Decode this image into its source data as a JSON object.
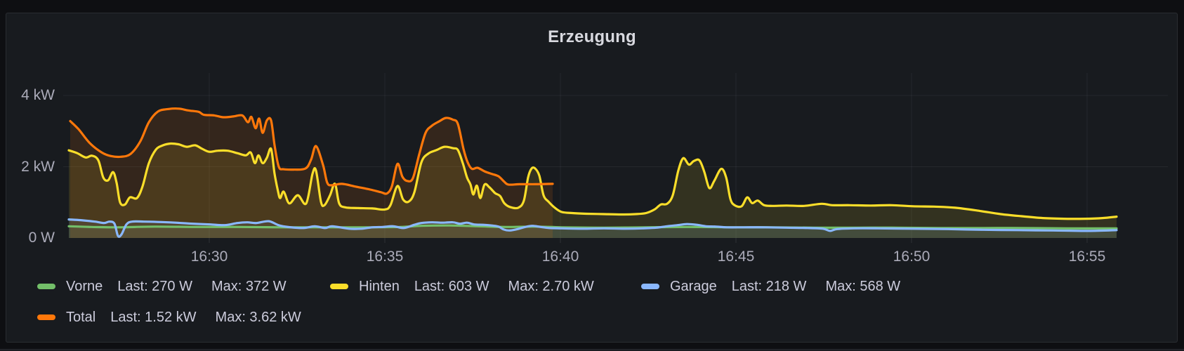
{
  "chart_data": {
    "type": "line",
    "title": "Erzeugung",
    "t_unit": "minutes after 16:26",
    "x_ticks": [
      {
        "label": "16:30",
        "t": 4
      },
      {
        "label": "16:35",
        "t": 9
      },
      {
        "label": "16:40",
        "t": 14
      },
      {
        "label": "16:45",
        "t": 19
      },
      {
        "label": "16:50",
        "t": 24
      },
      {
        "label": "16:55",
        "t": 29
      }
    ],
    "y_ticks": [
      {
        "label": "0 W",
        "v": 0
      },
      {
        "label": "2 kW",
        "v": 2
      },
      {
        "label": "4 kW",
        "v": 4
      }
    ],
    "ylim": [
      0,
      4.6
    ],
    "grid": true,
    "legend_position": "bottom",
    "series": [
      {
        "name": "Vorne",
        "color": "#73BF69",
        "fill_opacity": 0.1,
        "last": "270 W",
        "max": "372 W",
        "points": [
          [
            0,
            0.33
          ],
          [
            0.64,
            0.31
          ],
          [
            1.44,
            0.3
          ],
          [
            2.44,
            0.32
          ],
          [
            3.64,
            0.31
          ],
          [
            4.84,
            0.31
          ],
          [
            6.04,
            0.3
          ],
          [
            7.24,
            0.3
          ],
          [
            8.44,
            0.3
          ],
          [
            9.44,
            0.31
          ],
          [
            10.04,
            0.34
          ],
          [
            10.84,
            0.35
          ],
          [
            11.64,
            0.33
          ],
          [
            12.44,
            0.31
          ],
          [
            13.24,
            0.32
          ],
          [
            14.04,
            0.3
          ],
          [
            15.24,
            0.29
          ],
          [
            16.44,
            0.3
          ],
          [
            17.64,
            0.31
          ],
          [
            18.84,
            0.3
          ],
          [
            20.04,
            0.3
          ],
          [
            21.24,
            0.29
          ],
          [
            22.44,
            0.29
          ],
          [
            23.64,
            0.29
          ],
          [
            24.84,
            0.28
          ],
          [
            26.04,
            0.28
          ],
          [
            27.24,
            0.28
          ],
          [
            28.44,
            0.27
          ],
          [
            29.84,
            0.27
          ]
        ]
      },
      {
        "name": "Hinten",
        "color": "#FADE2A",
        "fill_opacity": 0.12,
        "last": "603 W",
        "max": "2.70 kW",
        "points": [
          [
            0,
            2.46
          ],
          [
            0.24,
            2.38
          ],
          [
            0.48,
            2.26
          ],
          [
            0.66,
            2.31
          ],
          [
            0.84,
            2.18
          ],
          [
            0.98,
            1.7
          ],
          [
            1.12,
            1.62
          ],
          [
            1.26,
            1.85
          ],
          [
            1.36,
            1.55
          ],
          [
            1.46,
            1.0
          ],
          [
            1.6,
            0.94
          ],
          [
            1.74,
            1.14
          ],
          [
            1.94,
            1.12
          ],
          [
            2.1,
            1.45
          ],
          [
            2.28,
            2.1
          ],
          [
            2.48,
            2.48
          ],
          [
            2.68,
            2.6
          ],
          [
            2.9,
            2.65
          ],
          [
            3.12,
            2.63
          ],
          [
            3.36,
            2.56
          ],
          [
            3.6,
            2.6
          ],
          [
            3.8,
            2.5
          ],
          [
            4.0,
            2.42
          ],
          [
            4.24,
            2.45
          ],
          [
            4.52,
            2.45
          ],
          [
            4.8,
            2.38
          ],
          [
            5.04,
            2.32
          ],
          [
            5.18,
            2.4
          ],
          [
            5.3,
            2.1
          ],
          [
            5.4,
            2.32
          ],
          [
            5.52,
            2.1
          ],
          [
            5.64,
            2.25
          ],
          [
            5.76,
            2.5
          ],
          [
            5.86,
            1.8
          ],
          [
            5.96,
            1.3
          ],
          [
            6.02,
            1.12
          ],
          [
            6.12,
            1.3
          ],
          [
            6.28,
            0.97
          ],
          [
            6.52,
            1.2
          ],
          [
            6.76,
            0.97
          ],
          [
            6.94,
            1.8
          ],
          [
            7.04,
            1.89
          ],
          [
            7.18,
            1.02
          ],
          [
            7.28,
            0.92
          ],
          [
            7.44,
            1.2
          ],
          [
            7.58,
            1.52
          ],
          [
            7.7,
            0.97
          ],
          [
            7.88,
            0.86
          ],
          [
            8.24,
            0.84
          ],
          [
            8.64,
            0.83
          ],
          [
            9.0,
            0.8
          ],
          [
            9.16,
            0.92
          ],
          [
            9.36,
            1.46
          ],
          [
            9.52,
            1.08
          ],
          [
            9.68,
            1.02
          ],
          [
            9.84,
            1.28
          ],
          [
            10.04,
            2.12
          ],
          [
            10.24,
            2.37
          ],
          [
            10.48,
            2.47
          ],
          [
            10.7,
            2.56
          ],
          [
            10.94,
            2.52
          ],
          [
            11.08,
            2.47
          ],
          [
            11.22,
            2.1
          ],
          [
            11.34,
            1.7
          ],
          [
            11.44,
            1.5
          ],
          [
            11.52,
            1.22
          ],
          [
            11.62,
            1.47
          ],
          [
            11.72,
            1.12
          ],
          [
            11.84,
            1.5
          ],
          [
            11.98,
            1.42
          ],
          [
            12.14,
            1.26
          ],
          [
            12.28,
            1.18
          ],
          [
            12.4,
            0.98
          ],
          [
            12.56,
            0.87
          ],
          [
            12.8,
            0.85
          ],
          [
            12.96,
            1.05
          ],
          [
            13.08,
            1.7
          ],
          [
            13.18,
            1.95
          ],
          [
            13.28,
            1.95
          ],
          [
            13.4,
            1.75
          ],
          [
            13.52,
            1.2
          ],
          [
            13.66,
            1.02
          ],
          [
            13.84,
            0.85
          ],
          [
            14.04,
            0.73
          ],
          [
            14.34,
            0.7
          ],
          [
            14.74,
            0.68
          ],
          [
            15.24,
            0.67
          ],
          [
            15.74,
            0.66
          ],
          [
            16.14,
            0.67
          ],
          [
            16.44,
            0.7
          ],
          [
            16.68,
            0.8
          ],
          [
            16.86,
            0.94
          ],
          [
            17.04,
            0.96
          ],
          [
            17.2,
            1.2
          ],
          [
            17.36,
            1.9
          ],
          [
            17.5,
            2.24
          ],
          [
            17.66,
            2.06
          ],
          [
            17.8,
            2.16
          ],
          [
            17.96,
            2.18
          ],
          [
            18.1,
            1.85
          ],
          [
            18.24,
            1.4
          ],
          [
            18.38,
            1.6
          ],
          [
            18.58,
            1.94
          ],
          [
            18.72,
            1.7
          ],
          [
            18.84,
            1.1
          ],
          [
            18.96,
            0.92
          ],
          [
            19.16,
            0.89
          ],
          [
            19.32,
            1.14
          ],
          [
            19.46,
            0.98
          ],
          [
            19.62,
            1.05
          ],
          [
            19.8,
            0.92
          ],
          [
            20.04,
            0.9
          ],
          [
            20.44,
            0.91
          ],
          [
            20.94,
            0.9
          ],
          [
            21.44,
            0.96
          ],
          [
            21.74,
            0.92
          ],
          [
            22.24,
            0.92
          ],
          [
            22.84,
            0.91
          ],
          [
            23.44,
            0.92
          ],
          [
            24.04,
            0.89
          ],
          [
            24.64,
            0.88
          ],
          [
            25.24,
            0.85
          ],
          [
            25.94,
            0.76
          ],
          [
            26.54,
            0.67
          ],
          [
            27.14,
            0.61
          ],
          [
            27.74,
            0.56
          ],
          [
            28.34,
            0.54
          ],
          [
            28.94,
            0.54
          ],
          [
            29.44,
            0.56
          ],
          [
            29.84,
            0.6
          ]
        ]
      },
      {
        "name": "Garage",
        "color": "#8AB8FF",
        "fill_opacity": 0.1,
        "last": "218 W",
        "max": "568 W",
        "points": [
          [
            0,
            0.52
          ],
          [
            0.34,
            0.5
          ],
          [
            0.74,
            0.46
          ],
          [
            1.0,
            0.42
          ],
          [
            1.16,
            0.46
          ],
          [
            1.3,
            0.4
          ],
          [
            1.4,
            0.06
          ],
          [
            1.5,
            0.1
          ],
          [
            1.64,
            0.38
          ],
          [
            1.8,
            0.46
          ],
          [
            2.14,
            0.46
          ],
          [
            2.54,
            0.45
          ],
          [
            3.04,
            0.43
          ],
          [
            3.54,
            0.4
          ],
          [
            4.04,
            0.38
          ],
          [
            4.44,
            0.36
          ],
          [
            4.8,
            0.42
          ],
          [
            5.08,
            0.44
          ],
          [
            5.34,
            0.42
          ],
          [
            5.7,
            0.47
          ],
          [
            6.04,
            0.34
          ],
          [
            6.64,
            0.28
          ],
          [
            7.0,
            0.33
          ],
          [
            7.3,
            0.28
          ],
          [
            7.5,
            0.33
          ],
          [
            7.98,
            0.26
          ],
          [
            8.34,
            0.26
          ],
          [
            8.64,
            0.3
          ],
          [
            8.94,
            0.31
          ],
          [
            9.24,
            0.33
          ],
          [
            9.54,
            0.28
          ],
          [
            9.84,
            0.37
          ],
          [
            10.04,
            0.42
          ],
          [
            10.34,
            0.44
          ],
          [
            10.64,
            0.43
          ],
          [
            10.94,
            0.44
          ],
          [
            11.14,
            0.4
          ],
          [
            11.34,
            0.43
          ],
          [
            11.54,
            0.38
          ],
          [
            11.8,
            0.37
          ],
          [
            12.04,
            0.35
          ],
          [
            12.24,
            0.32
          ],
          [
            12.38,
            0.24
          ],
          [
            12.54,
            0.21
          ],
          [
            12.74,
            0.24
          ],
          [
            13.0,
            0.31
          ],
          [
            13.2,
            0.34
          ],
          [
            13.44,
            0.31
          ],
          [
            13.68,
            0.28
          ],
          [
            14.04,
            0.27
          ],
          [
            14.64,
            0.26
          ],
          [
            15.24,
            0.27
          ],
          [
            15.84,
            0.26
          ],
          [
            16.34,
            0.27
          ],
          [
            16.74,
            0.29
          ],
          [
            17.04,
            0.33
          ],
          [
            17.34,
            0.36
          ],
          [
            17.6,
            0.39
          ],
          [
            17.88,
            0.37
          ],
          [
            18.14,
            0.33
          ],
          [
            18.44,
            0.32
          ],
          [
            18.74,
            0.3
          ],
          [
            19.24,
            0.3
          ],
          [
            19.84,
            0.3
          ],
          [
            20.44,
            0.29
          ],
          [
            21.04,
            0.28
          ],
          [
            21.48,
            0.26
          ],
          [
            21.68,
            0.2
          ],
          [
            21.88,
            0.25
          ],
          [
            22.34,
            0.27
          ],
          [
            23.04,
            0.27
          ],
          [
            24.04,
            0.26
          ],
          [
            25.04,
            0.25
          ],
          [
            26.04,
            0.23
          ],
          [
            27.04,
            0.22
          ],
          [
            28.04,
            0.21
          ],
          [
            29.04,
            0.2
          ],
          [
            29.84,
            0.22
          ]
        ]
      },
      {
        "name": "Total",
        "color": "#FF780A",
        "fill_opacity": 0.12,
        "last": "1.52 kW",
        "max": "3.62 kW",
        "points": [
          [
            0.04,
            3.28
          ],
          [
            0.28,
            3.05
          ],
          [
            0.6,
            2.66
          ],
          [
            0.94,
            2.4
          ],
          [
            1.2,
            2.3
          ],
          [
            1.48,
            2.28
          ],
          [
            1.76,
            2.36
          ],
          [
            2.04,
            2.72
          ],
          [
            2.28,
            3.25
          ],
          [
            2.54,
            3.55
          ],
          [
            2.84,
            3.62
          ],
          [
            3.14,
            3.63
          ],
          [
            3.4,
            3.58
          ],
          [
            3.7,
            3.54
          ],
          [
            3.84,
            3.46
          ],
          [
            4.14,
            3.44
          ],
          [
            4.4,
            3.39
          ],
          [
            4.68,
            3.41
          ],
          [
            4.94,
            3.44
          ],
          [
            5.1,
            3.25
          ],
          [
            5.2,
            3.4
          ],
          [
            5.32,
            3.08
          ],
          [
            5.42,
            3.35
          ],
          [
            5.52,
            2.95
          ],
          [
            5.64,
            3.3
          ],
          [
            5.76,
            3.3
          ],
          [
            5.86,
            2.6
          ],
          [
            5.98,
            2.0
          ],
          [
            6.12,
            1.93
          ],
          [
            6.4,
            1.92
          ],
          [
            6.74,
            1.95
          ],
          [
            6.9,
            2.2
          ],
          [
            7.04,
            2.58
          ],
          [
            7.24,
            2.05
          ],
          [
            7.36,
            1.55
          ],
          [
            7.5,
            1.48
          ],
          [
            7.78,
            1.52
          ],
          [
            8.18,
            1.44
          ],
          [
            8.58,
            1.36
          ],
          [
            8.9,
            1.28
          ],
          [
            9.06,
            1.25
          ],
          [
            9.2,
            1.45
          ],
          [
            9.36,
            2.08
          ],
          [
            9.5,
            1.72
          ],
          [
            9.64,
            1.6
          ],
          [
            9.8,
            1.68
          ],
          [
            9.98,
            2.35
          ],
          [
            10.16,
            2.95
          ],
          [
            10.34,
            3.15
          ],
          [
            10.56,
            3.28
          ],
          [
            10.74,
            3.37
          ],
          [
            10.94,
            3.32
          ],
          [
            11.08,
            3.2
          ],
          [
            11.24,
            2.5
          ],
          [
            11.36,
            2.12
          ],
          [
            11.48,
            1.94
          ],
          [
            11.64,
            1.97
          ],
          [
            11.84,
            1.87
          ],
          [
            12.04,
            1.8
          ],
          [
            12.24,
            1.73
          ],
          [
            12.4,
            1.58
          ],
          [
            12.52,
            1.5
          ],
          [
            12.84,
            1.51
          ],
          [
            13.3,
            1.51
          ],
          [
            13.78,
            1.52
          ]
        ]
      }
    ]
  },
  "legend": {
    "last_label": "Last:",
    "max_label": "Max:"
  }
}
